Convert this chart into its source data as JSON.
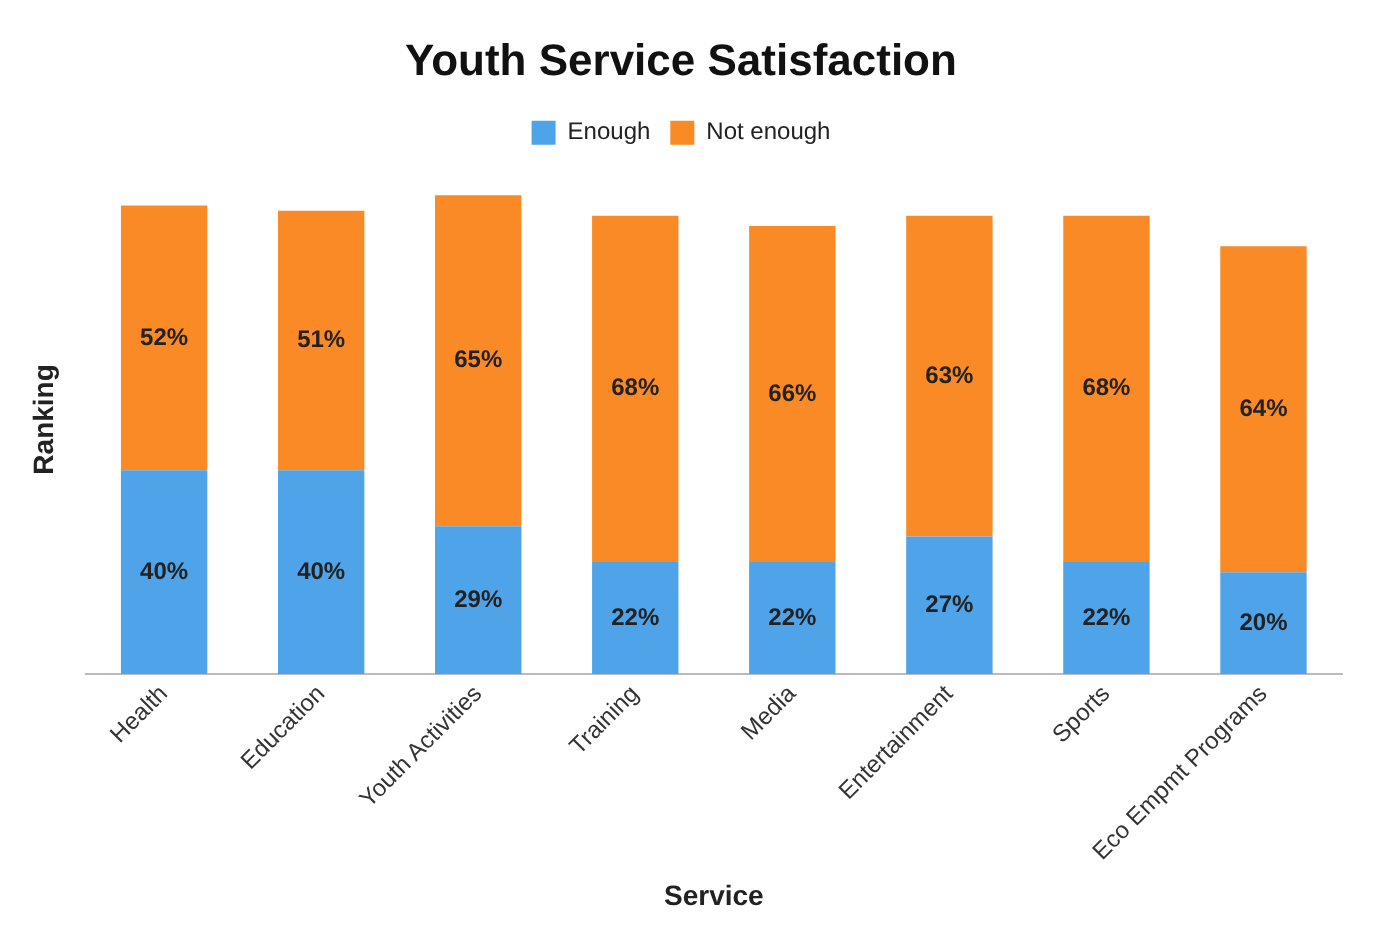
{
  "chart_data": {
    "type": "bar",
    "title": "Youth Service Satisfaction",
    "xlabel": "Service",
    "ylabel": "Ranking",
    "stacked": true,
    "legend": "top",
    "grid": false,
    "tick_labels": "x",
    "categories": [
      "Health",
      "Education",
      "Youth Activities",
      "Training",
      "Media",
      "Entertainment",
      "Sports",
      "Eco Empmt Programs"
    ],
    "series": [
      {
        "name": "Enough",
        "color": "#4fa3e8",
        "values": [
          40,
          40,
          29,
          22,
          22,
          27,
          22,
          20
        ],
        "value_labels": [
          "40%",
          "40%",
          "29%",
          "22%",
          "22%",
          "27%",
          "22%",
          "20%"
        ]
      },
      {
        "name": "Not enough",
        "color": "#f98a26",
        "values": [
          52,
          51,
          65,
          68,
          66,
          63,
          68,
          64
        ],
        "value_labels": [
          "52%",
          "51%",
          "65%",
          "68%",
          "66%",
          "63%",
          "68%",
          "64%"
        ]
      }
    ]
  }
}
